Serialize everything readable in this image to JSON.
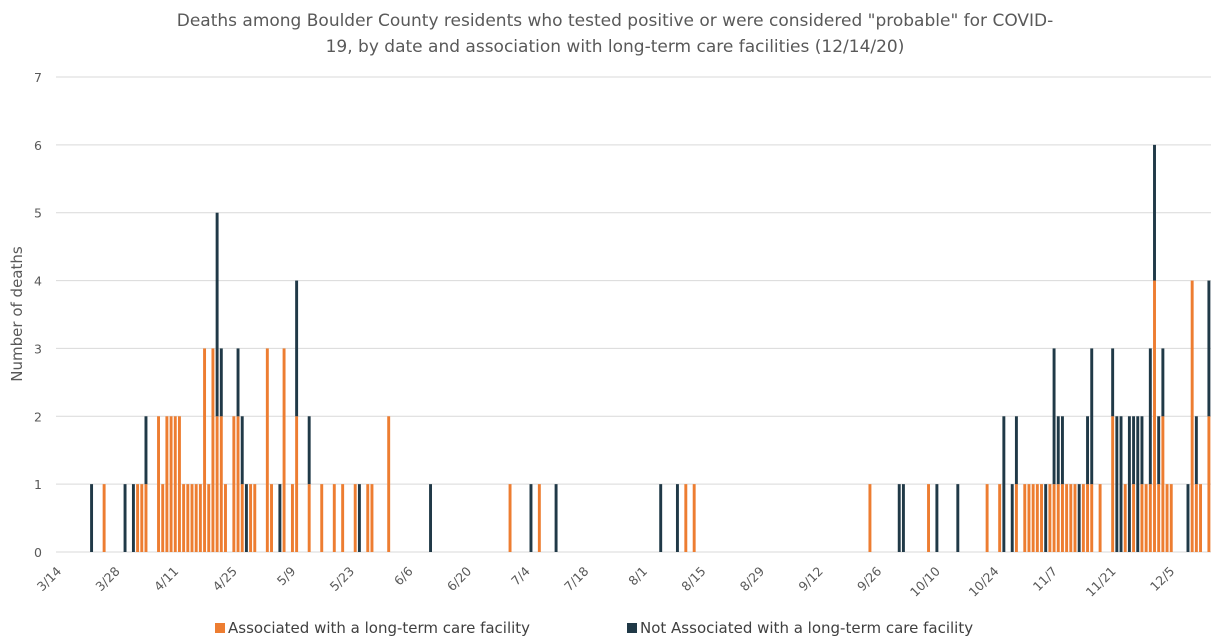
{
  "chart_data": {
    "type": "bar",
    "stacked": true,
    "title": "Deaths among Boulder County residents who tested positive or were considered \"probable\" for COVID-19, by date and association with long-term care facilities (12/14/20)",
    "ylabel": "Number of deaths",
    "xlabel": "",
    "ylim": [
      0,
      7
    ],
    "yticks": [
      0,
      1,
      2,
      3,
      4,
      5,
      6,
      7
    ],
    "grid": true,
    "legend_position": "bottom",
    "x_start": "2020-03-14",
    "x_end": "2020-12-14",
    "xtick_labels": [
      "3/14",
      "3/28",
      "4/11",
      "4/25",
      "5/9",
      "5/23",
      "6/6",
      "6/20",
      "7/4",
      "7/18",
      "8/1",
      "8/15",
      "8/29",
      "9/12",
      "9/26",
      "10/10",
      "10/24",
      "11/7",
      "11/21",
      "12/5"
    ],
    "colors": {
      "ltc": "#ed7d31",
      "not_ltc": "#203947"
    },
    "series": [
      {
        "name": "Associated with a long-term care facility",
        "key": "ltc",
        "points": [
          [
            "2020-03-25",
            1
          ],
          [
            "2020-04-02",
            1
          ],
          [
            "2020-04-03",
            1
          ],
          [
            "2020-04-04",
            1
          ],
          [
            "2020-04-07",
            2
          ],
          [
            "2020-04-08",
            1
          ],
          [
            "2020-04-09",
            2
          ],
          [
            "2020-04-10",
            2
          ],
          [
            "2020-04-11",
            2
          ],
          [
            "2020-04-12",
            2
          ],
          [
            "2020-04-13",
            1
          ],
          [
            "2020-04-14",
            1
          ],
          [
            "2020-04-15",
            1
          ],
          [
            "2020-04-16",
            1
          ],
          [
            "2020-04-17",
            1
          ],
          [
            "2020-04-18",
            3
          ],
          [
            "2020-04-19",
            1
          ],
          [
            "2020-04-20",
            3
          ],
          [
            "2020-04-21",
            2
          ],
          [
            "2020-04-22",
            2
          ],
          [
            "2020-04-23",
            1
          ],
          [
            "2020-04-25",
            2
          ],
          [
            "2020-04-26",
            2
          ],
          [
            "2020-04-27",
            1
          ],
          [
            "2020-04-29",
            1
          ],
          [
            "2020-04-30",
            1
          ],
          [
            "2020-05-03",
            3
          ],
          [
            "2020-05-04",
            1
          ],
          [
            "2020-05-07",
            3
          ],
          [
            "2020-05-09",
            1
          ],
          [
            "2020-05-10",
            2
          ],
          [
            "2020-05-13",
            1
          ],
          [
            "2020-05-16",
            1
          ],
          [
            "2020-05-19",
            1
          ],
          [
            "2020-05-21",
            1
          ],
          [
            "2020-05-24",
            1
          ],
          [
            "2020-05-27",
            1
          ],
          [
            "2020-05-28",
            1
          ],
          [
            "2020-06-01",
            2
          ],
          [
            "2020-06-30",
            1
          ],
          [
            "2020-07-07",
            1
          ],
          [
            "2020-08-11",
            1
          ],
          [
            "2020-08-13",
            1
          ],
          [
            "2020-09-24",
            1
          ],
          [
            "2020-10-08",
            1
          ],
          [
            "2020-10-22",
            1
          ],
          [
            "2020-10-25",
            1
          ],
          [
            "2020-10-29",
            1
          ],
          [
            "2020-10-31",
            1
          ],
          [
            "2020-11-01",
            1
          ],
          [
            "2020-11-02",
            1
          ],
          [
            "2020-11-03",
            1
          ],
          [
            "2020-11-04",
            1
          ],
          [
            "2020-11-06",
            1
          ],
          [
            "2020-11-07",
            1
          ],
          [
            "2020-11-08",
            1
          ],
          [
            "2020-11-09",
            1
          ],
          [
            "2020-11-10",
            1
          ],
          [
            "2020-11-11",
            1
          ],
          [
            "2020-11-12",
            1
          ],
          [
            "2020-11-14",
            1
          ],
          [
            "2020-11-15",
            1
          ],
          [
            "2020-11-16",
            1
          ],
          [
            "2020-11-18",
            1
          ],
          [
            "2020-11-21",
            2
          ],
          [
            "2020-11-24",
            1
          ],
          [
            "2020-11-26",
            1
          ],
          [
            "2020-11-28",
            1
          ],
          [
            "2020-11-29",
            1
          ],
          [
            "2020-11-30",
            1
          ],
          [
            "2020-12-01",
            4
          ],
          [
            "2020-12-02",
            1
          ],
          [
            "2020-12-03",
            2
          ],
          [
            "2020-12-04",
            1
          ],
          [
            "2020-12-05",
            1
          ],
          [
            "2020-12-10",
            4
          ],
          [
            "2020-12-11",
            1
          ],
          [
            "2020-12-12",
            1
          ],
          [
            "2020-12-14",
            2
          ]
        ]
      },
      {
        "name": "Not Associated with a long-term care facility",
        "key": "not_ltc",
        "points": [
          [
            "2020-03-22",
            1
          ],
          [
            "2020-03-30",
            1
          ],
          [
            "2020-04-01",
            1
          ],
          [
            "2020-04-04",
            1
          ],
          [
            "2020-04-21",
            3
          ],
          [
            "2020-04-22",
            1
          ],
          [
            "2020-04-26",
            1
          ],
          [
            "2020-04-27",
            1
          ],
          [
            "2020-04-28",
            1
          ],
          [
            "2020-05-06",
            1
          ],
          [
            "2020-05-10",
            2
          ],
          [
            "2020-05-13",
            1
          ],
          [
            "2020-05-25",
            1
          ],
          [
            "2020-06-11",
            1
          ],
          [
            "2020-07-05",
            1
          ],
          [
            "2020-07-11",
            1
          ],
          [
            "2020-08-05",
            1
          ],
          [
            "2020-08-09",
            1
          ],
          [
            "2020-10-01",
            1
          ],
          [
            "2020-10-02",
            1
          ],
          [
            "2020-10-10",
            1
          ],
          [
            "2020-10-15",
            1
          ],
          [
            "2020-10-26",
            2
          ],
          [
            "2020-10-28",
            1
          ],
          [
            "2020-10-29",
            1
          ],
          [
            "2020-11-05",
            1
          ],
          [
            "2020-11-07",
            2
          ],
          [
            "2020-11-08",
            1
          ],
          [
            "2020-11-09",
            1
          ],
          [
            "2020-11-13",
            1
          ],
          [
            "2020-11-15",
            1
          ],
          [
            "2020-11-16",
            2
          ],
          [
            "2020-11-21",
            1
          ],
          [
            "2020-11-22",
            2
          ],
          [
            "2020-11-23",
            2
          ],
          [
            "2020-11-25",
            2
          ],
          [
            "2020-11-26",
            1
          ],
          [
            "2020-11-27",
            2
          ],
          [
            "2020-11-28",
            1
          ],
          [
            "2020-11-30",
            2
          ],
          [
            "2020-12-01",
            2
          ],
          [
            "2020-12-02",
            1
          ],
          [
            "2020-12-03",
            1
          ],
          [
            "2020-12-09",
            1
          ],
          [
            "2020-12-11",
            1
          ],
          [
            "2020-12-14",
            2
          ]
        ]
      }
    ]
  }
}
